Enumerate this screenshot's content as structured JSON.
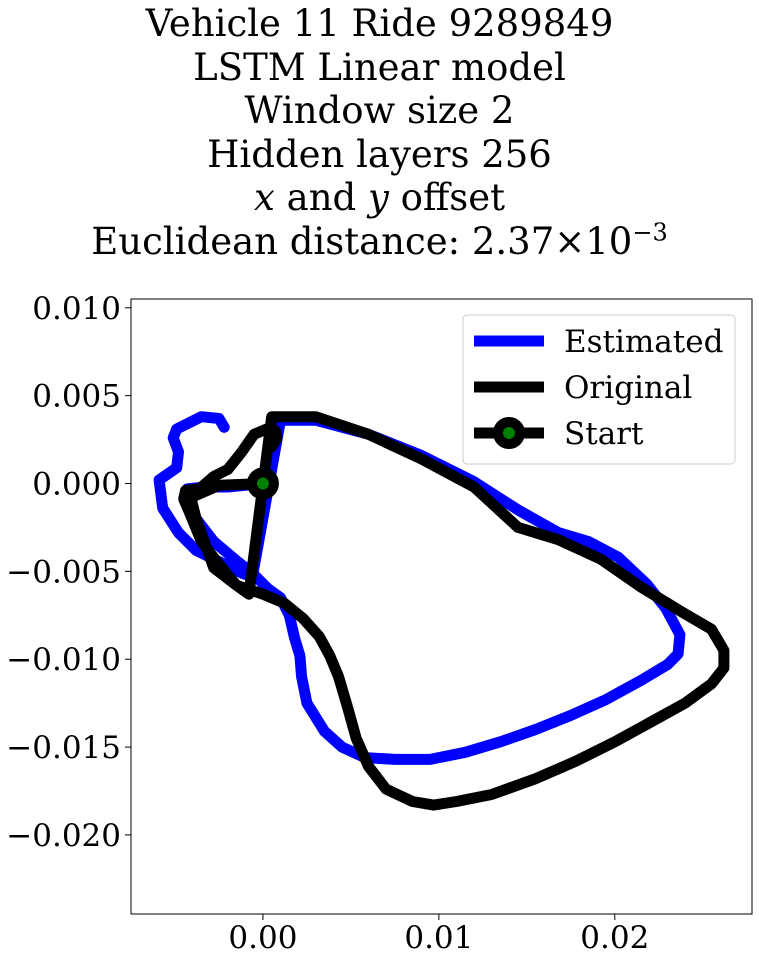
{
  "chart_data": {
    "type": "line",
    "title_lines": [
      "Vehicle 11 Ride 9289849",
      "LSTM Linear model",
      "Window size 2",
      "Hidden layers 256"
    ],
    "title_offset": {
      "x": "x",
      "and": " and ",
      "y": "y",
      "rest": " offset"
    },
    "title_distance": {
      "prefix": "Euclidean distance: 2.37×10",
      "exponent": "−3"
    },
    "xlim": [
      -0.0075,
      0.0278
    ],
    "ylim": [
      -0.0245,
      0.0105
    ],
    "x_ticks": [
      0.0,
      0.01,
      0.02
    ],
    "x_tick_labels": [
      "0.00",
      "0.01",
      "0.02"
    ],
    "y_ticks": [
      0.01,
      0.005,
      0.0,
      -0.005,
      -0.01,
      -0.015,
      -0.02
    ],
    "y_tick_labels": [
      "0.010",
      "0.005",
      "0.000",
      "−0.005",
      "−0.010",
      "−0.015",
      "−0.020"
    ],
    "grid": false,
    "legend_position": "top-right",
    "legend": [
      "Estimated",
      "Original",
      "Start"
    ],
    "series": [
      {
        "name": "Estimated",
        "color": "#0000ff",
        "x": [
          -0.0022,
          -0.0025,
          -0.0035,
          -0.0049,
          -0.0051,
          -0.0048,
          -0.0049,
          -0.0059,
          -0.0057,
          -0.0048,
          -0.0038,
          -0.003,
          -0.002,
          -0.0012,
          -0.0006,
          0.001,
          0.003,
          0.006,
          0.009,
          0.012,
          0.0145,
          0.0168,
          0.0185,
          0.0202,
          0.0218,
          0.0229,
          0.0237,
          0.0236,
          0.023,
          0.0215,
          0.0195,
          0.0175,
          0.0155,
          0.0135,
          0.0115,
          0.0095,
          0.0075,
          0.0058,
          0.0045,
          0.0035,
          0.0025,
          0.0022,
          0.0021,
          0.0018,
          0.0015,
          0.001,
          0.0003,
          -0.0005,
          -0.0015,
          -0.0028,
          -0.0038,
          -0.0045,
          -0.0043,
          -0.0033,
          -0.002,
          -0.001,
          0.0
        ],
        "y": [
          0.0032,
          0.0037,
          0.0038,
          0.0031,
          0.0026,
          0.0018,
          0.0009,
          0.0002,
          -0.0014,
          -0.0028,
          -0.0038,
          -0.0042,
          -0.0047,
          -0.0051,
          -0.0053,
          0.0036,
          0.0036,
          0.0028,
          0.0016,
          0.0001,
          -0.0015,
          -0.0028,
          -0.0033,
          -0.0042,
          -0.0057,
          -0.0071,
          -0.0086,
          -0.0097,
          -0.0103,
          -0.0112,
          -0.0123,
          -0.0132,
          -0.014,
          -0.0147,
          -0.0153,
          -0.0157,
          -0.0157,
          -0.0156,
          -0.015,
          -0.0141,
          -0.0125,
          -0.011,
          -0.0098,
          -0.0088,
          -0.0075,
          -0.0065,
          -0.006,
          -0.0052,
          -0.0044,
          -0.0033,
          -0.002,
          -0.0008,
          -0.0003,
          -0.0002,
          -0.0002,
          -0.0001,
          0.0
        ]
      },
      {
        "name": "Original",
        "color": "#000000",
        "x": [
          0.0005,
          0.0008,
          0.0007,
          0.0002,
          -0.0005,
          -0.0012,
          -0.002,
          -0.0028,
          -0.0036,
          -0.0044,
          -0.0045,
          -0.0042,
          -0.0035,
          -0.0025,
          -0.0015,
          -0.0008,
          0.0005,
          0.003,
          0.006,
          0.009,
          0.012,
          0.0145,
          0.0168,
          0.0192,
          0.0215,
          0.0238,
          0.0255,
          0.0262,
          0.0262,
          0.0255,
          0.024,
          0.022,
          0.02,
          0.0178,
          0.0155,
          0.013,
          0.011,
          0.0097,
          0.0085,
          0.007,
          0.006,
          0.0053,
          0.0048,
          0.0043,
          0.0038,
          0.0032,
          0.0023,
          0.0012,
          0.0,
          -0.0015,
          -0.0028,
          -0.0038,
          -0.0041,
          -0.0025,
          0.0
        ],
        "y": [
          0.0021,
          0.0026,
          0.003,
          0.0031,
          0.0028,
          0.0018,
          0.0008,
          0.0004,
          -0.0003,
          -0.0004,
          -0.0009,
          -0.0016,
          -0.0033,
          -0.0046,
          -0.0058,
          -0.0063,
          0.0038,
          0.0038,
          0.0028,
          0.0014,
          -0.0002,
          -0.0025,
          -0.0032,
          -0.0043,
          -0.0059,
          -0.0073,
          -0.0083,
          -0.0095,
          -0.0105,
          -0.0114,
          -0.0125,
          -0.0136,
          -0.0147,
          -0.0158,
          -0.0168,
          -0.0177,
          -0.0181,
          -0.0183,
          -0.0181,
          -0.0174,
          -0.0161,
          -0.0145,
          -0.0127,
          -0.011,
          -0.0098,
          -0.0087,
          -0.0077,
          -0.0068,
          -0.0063,
          -0.0058,
          -0.0048,
          -0.002,
          -0.0008,
          -0.0001,
          0.0
        ]
      }
    ],
    "start_marker": {
      "name": "Start",
      "x": 0.0,
      "y": 0.0,
      "edge_color": "#000000",
      "face_color": "#008000"
    }
  }
}
